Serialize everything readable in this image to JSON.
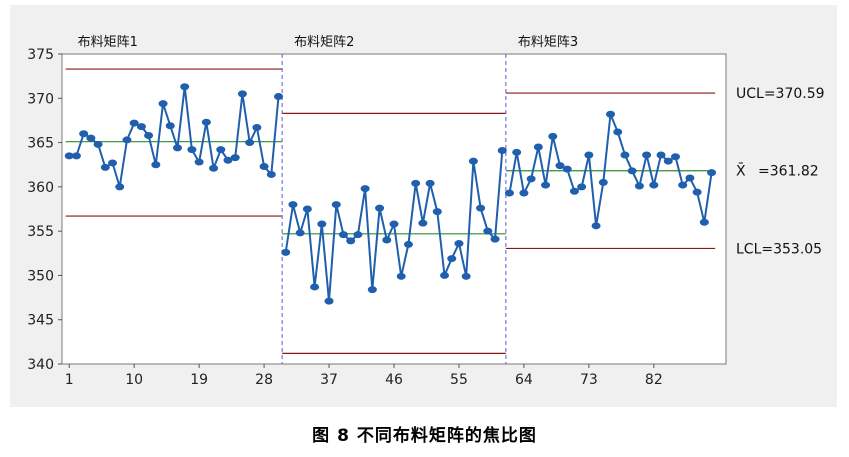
{
  "caption": "图 8    不同布料矩阵的焦比图",
  "chart_data": {
    "type": "line",
    "title": "",
    "xlabel": "",
    "ylabel": "",
    "ylim": [
      340,
      375
    ],
    "xlim": [
      0,
      92
    ],
    "yticks": [
      340,
      345,
      350,
      355,
      360,
      365,
      370,
      375
    ],
    "xticks": [
      1,
      10,
      19,
      28,
      37,
      46,
      55,
      64,
      73,
      82
    ],
    "grid": false,
    "colors": {
      "series": "#1f5fad",
      "limit": "#8b1a1a",
      "center": "#2e8b2e",
      "divider": "#5a5ad0"
    },
    "stages": [
      {
        "label": "布料矩阵1",
        "start": 1,
        "end": 30,
        "center": 365.1,
        "ucl": 373.3,
        "lcl": 356.7
      },
      {
        "label": "布料矩阵2",
        "start": 31,
        "end": 61,
        "center": 354.7,
        "ucl": 368.3,
        "lcl": 341.2
      },
      {
        "label": "布料矩阵3",
        "start": 62,
        "end": 90,
        "center": 361.82,
        "ucl": 370.59,
        "lcl": 353.05
      }
    ],
    "limit_labels": {
      "ucl": "UCL=370.59",
      "center": "=361.82",
      "center_symbol": "X̄",
      "lcl": "LCL=353.05"
    },
    "series": [
      {
        "values": [
          363.5,
          363.5,
          366.0,
          365.5,
          364.8,
          362.2,
          362.7,
          360.0,
          365.3,
          367.2,
          366.8,
          365.8,
          362.5,
          369.4,
          366.9,
          364.4,
          371.3,
          364.2,
          362.8,
          367.3,
          362.1,
          364.2,
          363.0,
          363.3,
          370.5,
          365.0,
          366.7,
          362.3,
          361.4,
          370.2,
          352.6,
          358.0,
          354.8,
          357.5,
          348.7,
          355.8,
          347.1,
          358.0,
          354.6,
          353.9,
          354.6,
          359.8,
          348.4,
          357.6,
          354.0,
          355.8,
          349.9,
          353.5,
          360.4,
          355.9,
          360.4,
          357.2,
          350.0,
          351.9,
          353.6,
          349.9,
          362.9,
          357.6,
          355.0,
          354.1,
          364.1,
          359.3,
          363.9,
          359.3,
          360.9,
          364.5,
          360.2,
          365.7,
          362.4,
          362.0,
          359.5,
          360.0,
          363.6,
          355.6,
          360.5,
          368.2,
          366.2,
          363.6,
          361.8,
          360.1,
          363.6,
          360.2,
          363.6,
          362.9,
          363.4,
          360.2,
          361.0,
          359.4,
          356.0,
          361.6
        ]
      }
    ]
  }
}
